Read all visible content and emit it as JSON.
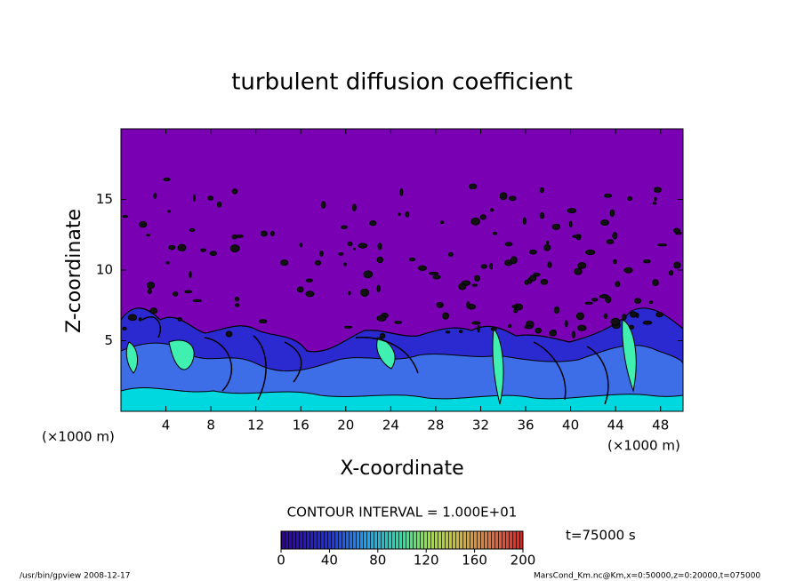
{
  "chart_data": {
    "type": "contour",
    "title": "turbulent diffusion coefficient",
    "xlabel": "X-coordinate",
    "ylabel": "Z-coordinate",
    "xunit_left": "(×1000 m)",
    "xunit_right": "(×1000 m)",
    "xlim": [
      0,
      50
    ],
    "xticks": [
      4,
      8,
      12,
      16,
      20,
      24,
      28,
      32,
      36,
      40,
      44,
      48
    ],
    "ylim": [
      0,
      20
    ],
    "yticks": [
      5,
      10,
      15
    ],
    "contour_interval_label": "CONTOUR INTERVAL = 1.000E+01",
    "time_label": "t=75000 s",
    "colorbar": {
      "lim": [
        0,
        200
      ],
      "ticks": [
        0,
        40,
        80,
        120,
        160,
        200
      ]
    },
    "footer_left": "/usr/bin/gpview   2008-12-17",
    "footer_right": "MarsCond_Km.nc@Km,x=0:50000,z=0:20000,t=075000"
  }
}
